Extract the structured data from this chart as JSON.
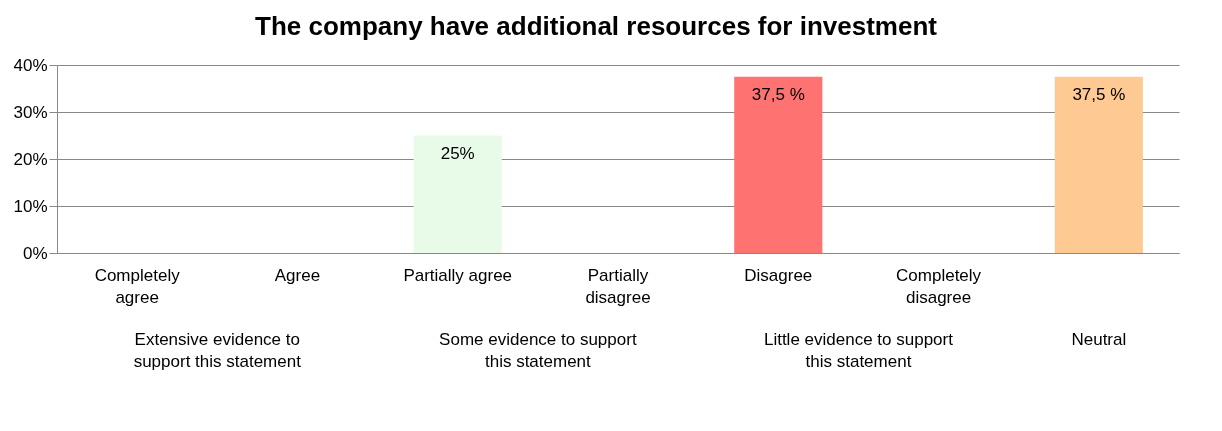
{
  "chart_data": {
    "type": "bar",
    "title": "The company have additional resources for investment",
    "categories": [
      "Completely agree",
      "Agree",
      "Partially agree",
      "Partially disagree",
      "Disagree",
      "Completely disagree",
      null
    ],
    "values": [
      0,
      0,
      25,
      0,
      37.5,
      0,
      37.5
    ],
    "colors": [
      "#d9f2d9",
      "#d9f2d9",
      "#e8fbe8",
      "#d9f2d9",
      "#ff7272",
      "#ffb0b0",
      "#ffc994"
    ],
    "value_labels": [
      null,
      null,
      "25%",
      null,
      "37,5 %",
      null,
      "37,5 %"
    ],
    "ylim": [
      0,
      40
    ],
    "yticks": [
      {
        "value": 0,
        "label": "0%"
      },
      {
        "value": 10,
        "label": "10%"
      },
      {
        "value": 20,
        "label": "20%"
      },
      {
        "value": 30,
        "label": "30%"
      },
      {
        "value": 40,
        "label": "40%"
      }
    ],
    "grid": "y",
    "annotations": [
      "Extensive evidence to support this statement",
      "Some evidence to support this statement",
      "Little evidence to support this statement",
      "Neutral"
    ]
  }
}
